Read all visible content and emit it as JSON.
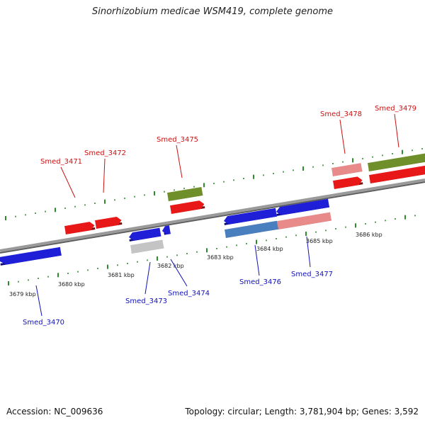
{
  "title": "Sinorhizobium medicae WSM419, complete genome",
  "footer": {
    "accession": "Accession: NC_009636",
    "stats": "Topology: circular; Length: 3,781,904 bp; Genes: 3,592"
  },
  "colors": {
    "axis": "#8a8a8a",
    "tick": "#2e8b2e",
    "cds_forward": "#e81818",
    "cds_forward_light": "#e88a8a",
    "cds_reverse": "#1f1fd8",
    "cds_reverse_steel": "#4a7fbf",
    "rna": "#6f8f2a",
    "pseudo": "#c4c4c4",
    "label_forward": "#cc1111",
    "label_reverse": "#1111bb"
  },
  "scale_labels": [
    "3679 kbp",
    "3680 kbp",
    "3681 kbp",
    "3682 kbp",
    "3683 kbp",
    "3684 kbp",
    "3685 kbp",
    "3686 kbp"
  ],
  "genes": [
    {
      "label": "Smed_3470",
      "strand": "reverse",
      "type": "cds"
    },
    {
      "label": "Smed_3471",
      "strand": "forward",
      "type": "cds"
    },
    {
      "label": "Smed_3472",
      "strand": "forward",
      "type": "cds"
    },
    {
      "label": "Smed_3473",
      "strand": "reverse",
      "type": "pseudo"
    },
    {
      "label": "Smed_3474",
      "strand": "reverse",
      "type": "cds"
    },
    {
      "label": "Smed_3475",
      "strand": "forward",
      "type": "rna"
    },
    {
      "label": "Smed_3476",
      "strand": "reverse",
      "type": "cds"
    },
    {
      "label": "Smed_3477",
      "strand": "reverse",
      "type": "cds"
    },
    {
      "label": "Smed_3478",
      "strand": "forward",
      "type": "cds"
    },
    {
      "label": "Smed_3479",
      "strand": "forward",
      "type": "rna"
    }
  ]
}
